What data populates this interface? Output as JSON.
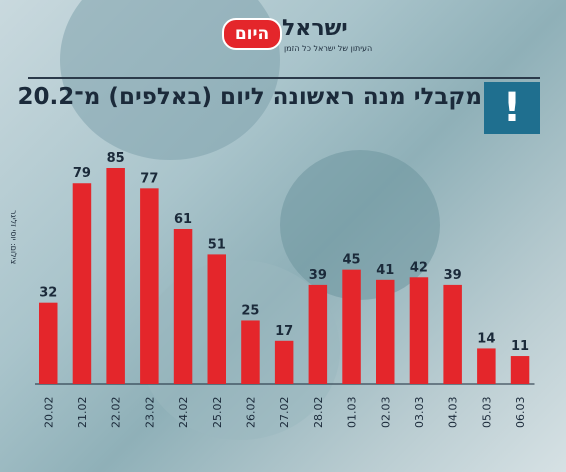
{
  "header": {
    "brand_name": "ישראל",
    "brand_badge": "היום",
    "brand_tagline": "העיתון של ישראל כל הזמן",
    "title": "מקבלי מנה ראשונה ליום (באלפים) מ־20.2",
    "alert_icon": "exclamation-icon",
    "credit": "צילום: יוסי זליגר"
  },
  "colors": {
    "bar": "#e4262b",
    "accent": "#1f6f8f",
    "text": "#1b2a3a"
  },
  "chart_data": {
    "type": "bar",
    "title": "מקבלי מנה ראשונה ליום (באלפים) מ־20.2",
    "xlabel": "",
    "ylabel": "",
    "categories": [
      "20.02",
      "21.02",
      "22.02",
      "23.02",
      "24.02",
      "25.02",
      "26.02",
      "27.02",
      "28.02",
      "01.03",
      "02.03",
      "03.03",
      "04.03",
      "05.03",
      "06.03"
    ],
    "values": [
      32,
      79,
      85,
      77,
      61,
      51,
      25,
      17,
      39,
      45,
      41,
      42,
      39,
      14,
      11
    ],
    "ylim": [
      0,
      85
    ],
    "grid": false,
    "data_labels": true
  }
}
